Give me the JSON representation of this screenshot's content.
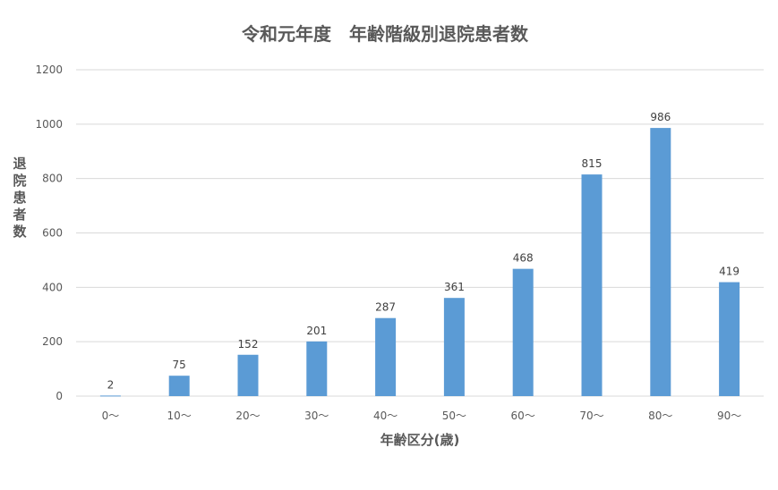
{
  "chart_data": {
    "type": "bar",
    "title": "令和元年度　年齢階級別退院患者数",
    "xlabel": "年齢区分(歳)",
    "ylabel": "退院患者数",
    "categories": [
      "0〜",
      "10〜",
      "20〜",
      "30〜",
      "40〜",
      "50〜",
      "60〜",
      "70〜",
      "80〜",
      "90〜"
    ],
    "values": [
      2,
      75,
      152,
      201,
      287,
      361,
      468,
      815,
      986,
      419
    ],
    "ylim": [
      0,
      1200
    ],
    "yticks": [
      0,
      200,
      400,
      600,
      800,
      1000,
      1200
    ],
    "grid": true,
    "legend": "none",
    "bar_color": "#5b9bd5",
    "show_data_labels": true
  }
}
